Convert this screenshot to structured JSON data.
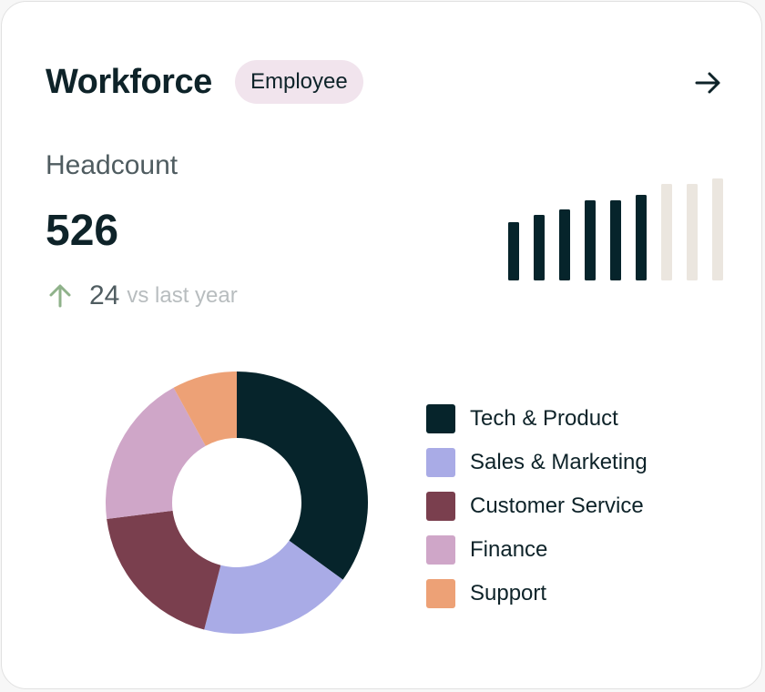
{
  "header": {
    "title": "Workforce",
    "badge": "Employee",
    "nav_icon": "arrow-right-icon"
  },
  "headcount": {
    "label": "Headcount",
    "value": "526",
    "change": {
      "icon": "arrow-up-icon",
      "value": "24",
      "text": "vs last year",
      "color": "#8fb28a"
    }
  },
  "chart_data": [
    {
      "type": "bar",
      "title": "",
      "categories": [
        "1",
        "2",
        "3",
        "4",
        "5",
        "6",
        "7",
        "8",
        "9"
      ],
      "values": [
        64,
        72,
        78,
        88,
        88,
        94,
        106,
        106,
        112
      ],
      "ylim": [
        0,
        112
      ],
      "grid": false,
      "colors": {
        "actual": "#06242b",
        "projected": "#ebe6df"
      },
      "actual_count": 6
    },
    {
      "type": "pie",
      "title": "",
      "donut": true,
      "categories": [
        "Tech & Product",
        "Sales & Marketing",
        "Customer Service",
        "Finance",
        "Support"
      ],
      "values": [
        35,
        19,
        19,
        19,
        8
      ],
      "colors": [
        "#06242b",
        "#a9abe6",
        "#7a3f4e",
        "#cfa6c8",
        "#eda176"
      ],
      "legend": "right"
    }
  ],
  "colors": {
    "text_primary": "#0e2329",
    "text_secondary": "#4f5c60",
    "text_muted": "#b8bdbf",
    "badge_background": "#f1e4ed",
    "card_background": "#ffffff"
  }
}
